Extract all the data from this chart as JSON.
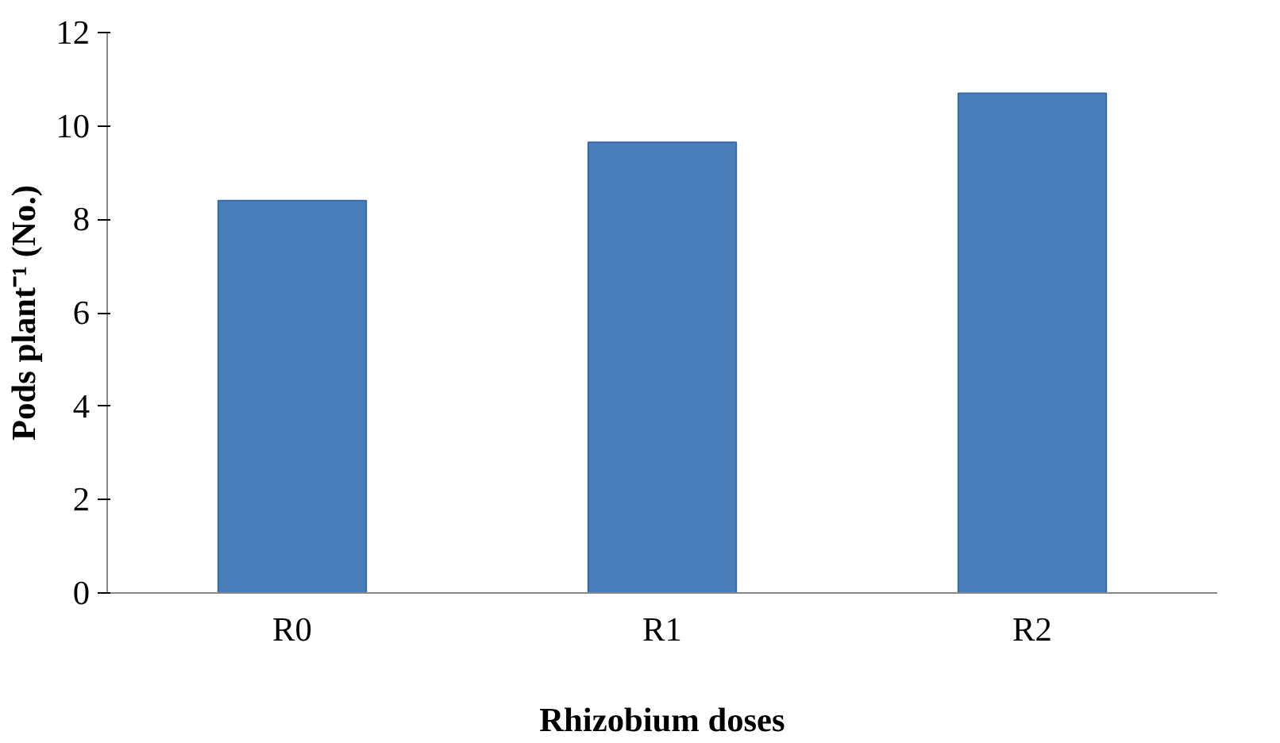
{
  "chart_data": {
    "type": "bar",
    "xlabel": "Rhizobium doses",
    "ylabel": "Pods plant⁻¹ (No.)",
    "categories": [
      "R0",
      "R1",
      "R2"
    ],
    "values": [
      8.4,
      9.65,
      10.7
    ],
    "color": "#4a7ebb",
    "ylim": [
      0,
      12
    ],
    "yticks": [
      0,
      2,
      4,
      6,
      8,
      10,
      12
    ],
    "grid": false
  }
}
